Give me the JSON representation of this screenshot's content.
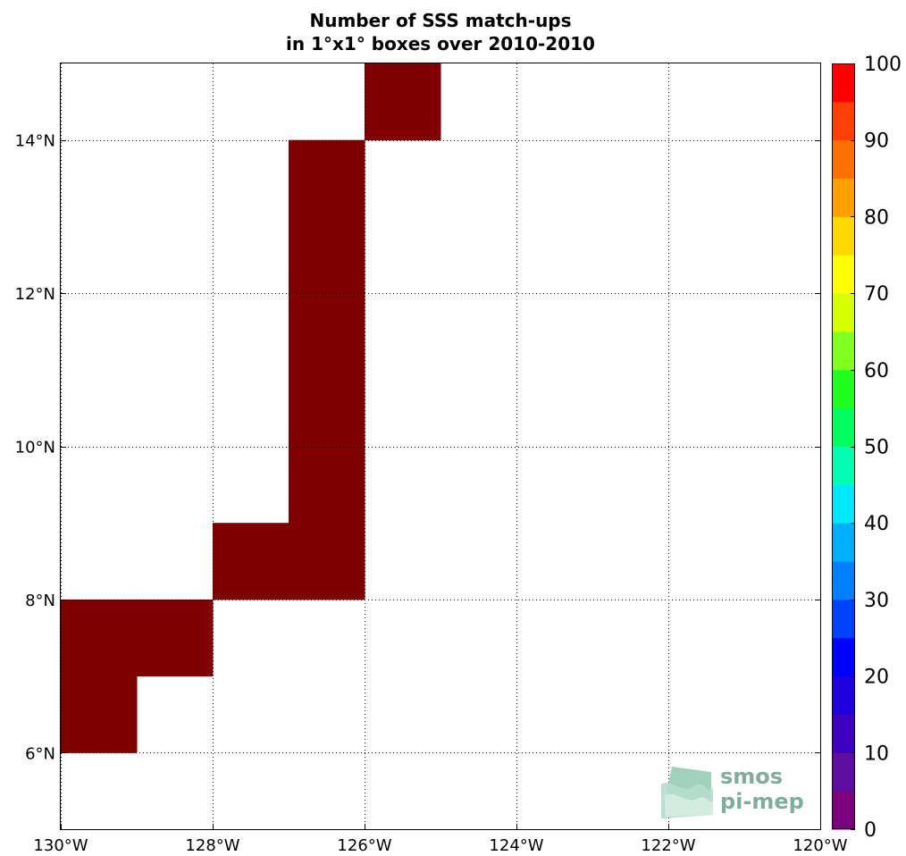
{
  "chart_data": {
    "type": "heatmap",
    "title": "Number of SSS match-ups",
    "subtitle": "in 1°x1° boxes over 2010-2010",
    "x_ticks": [
      {
        "value": -130,
        "label": "130°W"
      },
      {
        "value": -128,
        "label": "128°W"
      },
      {
        "value": -126,
        "label": "126°W"
      },
      {
        "value": -124,
        "label": "124°W"
      },
      {
        "value": -122,
        "label": "122°W"
      },
      {
        "value": -120,
        "label": "120°W"
      }
    ],
    "y_ticks": [
      {
        "value": 6,
        "label": "6°N"
      },
      {
        "value": 8,
        "label": "8°N"
      },
      {
        "value": 10,
        "label": "10°N"
      },
      {
        "value": 12,
        "label": "12°N"
      },
      {
        "value": 14,
        "label": "14°N"
      }
    ],
    "xlim": [
      -130,
      -120
    ],
    "ylim": [
      5,
      15
    ],
    "grid": true,
    "cells": [
      {
        "lon": -130,
        "lat": 6,
        "value": 100
      },
      {
        "lon": -130,
        "lat": 7,
        "value": 100
      },
      {
        "lon": -129,
        "lat": 7,
        "value": 100
      },
      {
        "lon": -128,
        "lat": 8,
        "value": 100
      },
      {
        "lon": -127,
        "lat": 8,
        "value": 100
      },
      {
        "lon": -127,
        "lat": 9,
        "value": 100
      },
      {
        "lon": -127,
        "lat": 10,
        "value": 100
      },
      {
        "lon": -127,
        "lat": 11,
        "value": 100
      },
      {
        "lon": -127,
        "lat": 12,
        "value": 100
      },
      {
        "lon": -127,
        "lat": 13,
        "value": 100
      },
      {
        "lon": -126,
        "lat": 14,
        "value": 100
      }
    ],
    "colorbar": {
      "min": 0,
      "max": 100,
      "step": 5,
      "tick_labels": [
        "0",
        "10",
        "20",
        "30",
        "40",
        "50",
        "60",
        "70",
        "80",
        "90",
        "100"
      ],
      "colors": [
        "#7f007f",
        "#5f0f9f",
        "#3f00bf",
        "#2000df",
        "#0000ff",
        "#0040ff",
        "#0080ff",
        "#00b0ff",
        "#00e8ff",
        "#00ffb0",
        "#00ff60",
        "#20ff20",
        "#80ff20",
        "#d8ff00",
        "#ffff00",
        "#ffd800",
        "#ff9f00",
        "#ff6f00",
        "#ff4000",
        "#ff0000",
        "#bf0000"
      ],
      "over_color": "#7f0000",
      "position": "right"
    }
  },
  "logo": {
    "line1": "smos",
    "line2": "pi-mep",
    "color": "#7fae9e"
  }
}
